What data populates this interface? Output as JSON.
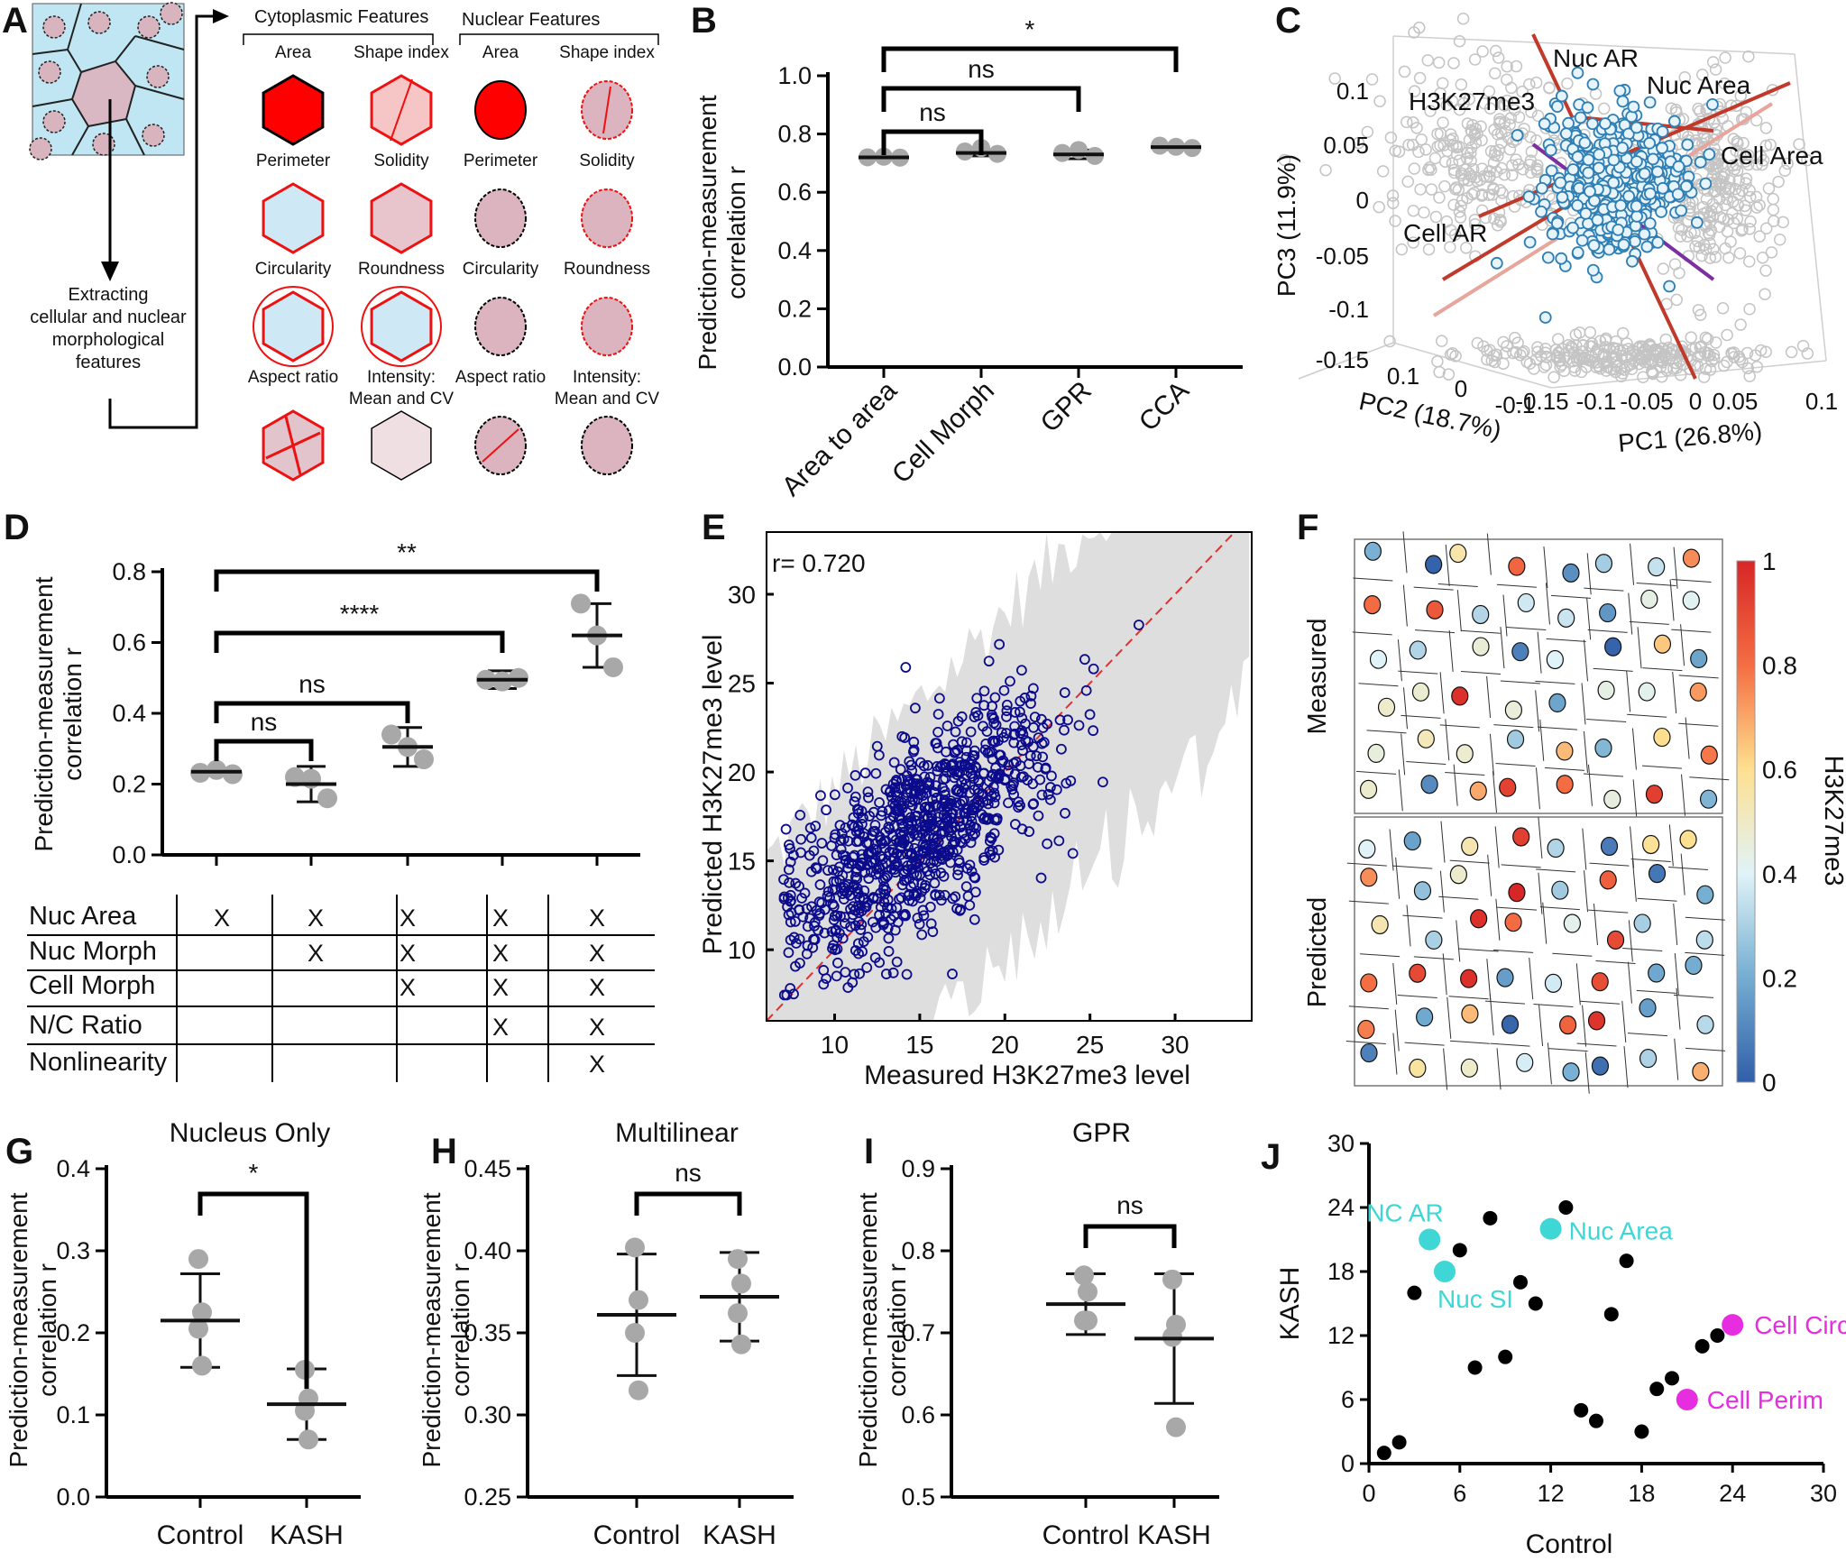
{
  "panels": {
    "a": {
      "label": "A",
      "cyto_header": "Cytoplasmic Features",
      "nuc_header": "Nuclear Features",
      "cyto_features": [
        "Area",
        "Shape index",
        "Perimeter",
        "Solidity",
        "Circularity",
        "Roundness",
        "Aspect ratio",
        "Intensity:",
        "Mean and CV"
      ],
      "nuc_features": [
        "Area",
        "Shape index",
        "Perimeter",
        "Solidity",
        "Circularity",
        "Roundness",
        "Aspect ratio",
        "Intensity:",
        "Mean and CV"
      ],
      "extract_lines": [
        "Extracting",
        "cellular and nuclear",
        "morphological",
        "features"
      ]
    },
    "b": {
      "label": "B",
      "ylabel": [
        "Prediction-measurement",
        "correlation r"
      ]
    },
    "c": {
      "label": "C"
    },
    "d": {
      "label": "D",
      "ylabel": [
        "Prediction-measurement",
        "correlation r"
      ]
    },
    "e": {
      "label": "E",
      "r_text": "r= 0.720"
    },
    "f": {
      "label": "F",
      "measured": "Measured",
      "predicted": "Predicted",
      "colorbar_label": "H3K27me3",
      "colorbar_ticks": [
        "0",
        "0.2",
        "0.4",
        "0.6",
        "0.8",
        "1"
      ]
    },
    "g": {
      "label": "G",
      "ylabel": [
        "Prediction-measurement",
        "correlation r"
      ]
    },
    "h": {
      "label": "H",
      "ylabel": [
        "Prediction-measurement",
        "correlation r"
      ]
    },
    "i": {
      "label": "I",
      "ylabel": [
        "Prediction-measurement",
        "correlation r"
      ]
    },
    "j": {
      "label": "J"
    },
    "d_table": {
      "rows": [
        "Nuc Area",
        "Nuc  Morph",
        "Cell Morph",
        "N/C Ratio",
        "Nonlinearity"
      ],
      "marks": [
        [
          1,
          1,
          1,
          1,
          1
        ],
        [
          0,
          1,
          1,
          1,
          1
        ],
        [
          0,
          0,
          1,
          1,
          1
        ],
        [
          0,
          0,
          0,
          1,
          1
        ],
        [
          0,
          0,
          0,
          0,
          1
        ]
      ],
      "mark": "X"
    }
  },
  "chart_data": [
    {
      "id": "B",
      "type": "scatter",
      "ylabel": "Prediction-measurement correlation r",
      "categories": [
        "Area to area",
        "Cell Morph",
        "GPR",
        "CCA"
      ],
      "mean": [
        0.72,
        0.735,
        0.73,
        0.755
      ],
      "sd": [
        0.008,
        0.01,
        0.015,
        0.008
      ],
      "points": [
        [
          0.72,
          0.722,
          0.719
        ],
        [
          0.74,
          0.752,
          0.732
        ],
        [
          0.735,
          0.745,
          0.725
        ],
        [
          0.76,
          0.756,
          0.752
        ]
      ],
      "ylim": [
        0,
        1.0
      ],
      "yticks": [
        "0.0",
        "0.2",
        "0.4",
        "0.6",
        "0.8",
        "1.0"
      ],
      "comparisons": [
        {
          "from": 0,
          "to": 1,
          "label": "ns"
        },
        {
          "from": 0,
          "to": 2,
          "label": "ns"
        },
        {
          "from": 0,
          "to": 3,
          "label": "*"
        }
      ]
    },
    {
      "id": "C",
      "type": "scatter",
      "xlabel": "PC1 (26.8%)",
      "ylabel": "PC3 (11.9%)",
      "zlabel": "PC2 (18.7%)",
      "ytick_labels": [
        "0.1",
        "0.05",
        "0",
        "-0.05",
        "-0.1",
        "-0.15"
      ],
      "xtick_labels": [
        "-0.15",
        "-0.1",
        "-0.05",
        "0",
        "0.05",
        "0.1"
      ],
      "ztick_labels": [
        "0.1",
        "0",
        "-0.1"
      ],
      "loadings": [
        "Nuc AR",
        "Nuc Area",
        "H3K27me3",
        "Cell Area",
        "Cell AR"
      ]
    },
    {
      "id": "D",
      "type": "scatter",
      "ylabel": "Prediction-measurement correlation r",
      "mean": [
        0.235,
        0.2,
        0.305,
        0.495,
        0.62
      ],
      "sd": [
        0.01,
        0.05,
        0.055,
        0.025,
        0.09
      ],
      "points": [
        [
          0.232,
          0.24,
          0.228
        ],
        [
          0.22,
          0.215,
          0.16
        ],
        [
          0.34,
          0.305,
          0.27
        ],
        [
          0.495,
          0.49,
          0.5
        ],
        [
          0.71,
          0.62,
          0.53
        ]
      ],
      "ylim": [
        0,
        0.8
      ],
      "yticks": [
        "0.0",
        "0.2",
        "0.4",
        "0.6",
        "0.8"
      ],
      "comparisons": [
        {
          "from": 0,
          "to": 1,
          "label": "ns"
        },
        {
          "from": 0,
          "to": 2,
          "label": "ns"
        },
        {
          "from": 0,
          "to": 3,
          "label": "****"
        },
        {
          "from": 0,
          "to": 4,
          "label": "**"
        }
      ]
    },
    {
      "id": "E",
      "type": "scatter",
      "xlabel": "Measured H3K27me3 level",
      "ylabel": "Predicted H3K27me3 level",
      "xlim": [
        6,
        34.5
      ],
      "ylim": [
        6,
        33.5
      ],
      "xticks": [
        "10",
        "15",
        "20",
        "25",
        "30"
      ],
      "yticks": [
        "10",
        "15",
        "20",
        "25",
        "30"
      ],
      "n_points": 900,
      "r": 0.72
    },
    {
      "id": "G",
      "type": "scatter",
      "title": "Nucleus Only",
      "categories": [
        "Control",
        "KASH"
      ],
      "mean": [
        0.215,
        0.113
      ],
      "sd": [
        0.057,
        0.043
      ],
      "points": [
        [
          0.29,
          0.225,
          0.205,
          0.16
        ],
        [
          0.155,
          0.12,
          0.105,
          0.07
        ]
      ],
      "ylim": [
        0,
        0.4
      ],
      "yticks": [
        "0.0",
        "0.1",
        "0.2",
        "0.3",
        "0.4"
      ],
      "sig": "*"
    },
    {
      "id": "H",
      "type": "scatter",
      "title": "Multilinear",
      "categories": [
        "Control",
        "KASH"
      ],
      "mean": [
        0.361,
        0.372
      ],
      "sd": [
        0.037,
        0.027
      ],
      "points": [
        [
          0.402,
          0.37,
          0.35,
          0.315
        ],
        [
          0.395,
          0.38,
          0.362,
          0.343
        ]
      ],
      "ylim": [
        0.25,
        0.45
      ],
      "yticks": [
        "0.25",
        "0.30",
        "0.35",
        "0.40",
        "0.45"
      ],
      "sig": "ns"
    },
    {
      "id": "I",
      "type": "scatter",
      "title": "GPR",
      "categories": [
        "Control",
        "KASH"
      ],
      "mean": [
        0.735,
        0.693
      ],
      "sd": [
        0.037,
        0.079
      ],
      "points": [
        [
          0.77,
          0.75,
          0.715,
          0.715
        ],
        [
          0.765,
          0.71,
          0.695,
          0.585
        ]
      ],
      "ylim": [
        0.5,
        0.9
      ],
      "yticks": [
        "0.5",
        "0.6",
        "0.7",
        "0.8",
        "0.9"
      ],
      "sig": "ns"
    },
    {
      "id": "J",
      "type": "scatter",
      "xlabel": "Control",
      "ylabel": "KASH",
      "xlim": [
        0,
        30
      ],
      "ylim": [
        0,
        30
      ],
      "xticks": [
        "0",
        "6",
        "12",
        "18",
        "24",
        "30"
      ],
      "yticks": [
        "0",
        "6",
        "12",
        "18",
        "24",
        "30"
      ],
      "points": [
        [
          1,
          1
        ],
        [
          2,
          2
        ],
        [
          3,
          16
        ],
        [
          6,
          20
        ],
        [
          7,
          9
        ],
        [
          8,
          23
        ],
        [
          9,
          10
        ],
        [
          10,
          17
        ],
        [
          11,
          15
        ],
        [
          13,
          24
        ],
        [
          14,
          5
        ],
        [
          15,
          4
        ],
        [
          16,
          14
        ],
        [
          17,
          19
        ],
        [
          18,
          3
        ],
        [
          19,
          7
        ],
        [
          20,
          8
        ],
        [
          22,
          11
        ],
        [
          23,
          12
        ]
      ],
      "highlighted": [
        {
          "label": "NC AR",
          "x": 4,
          "y": 21,
          "color": "#3fd6d6"
        },
        {
          "label": "Nuc SI",
          "x": 5,
          "y": 18,
          "color": "#3fd6d6"
        },
        {
          "label": "Nuc Area",
          "x": 12,
          "y": 22,
          "color": "#3fd6d6"
        },
        {
          "label": "Cell Circ",
          "x": 24,
          "y": 13,
          "color": "#e62ee0"
        },
        {
          "label": "Cell Perim",
          "x": 21,
          "y": 6,
          "color": "#e62ee0"
        }
      ]
    }
  ]
}
